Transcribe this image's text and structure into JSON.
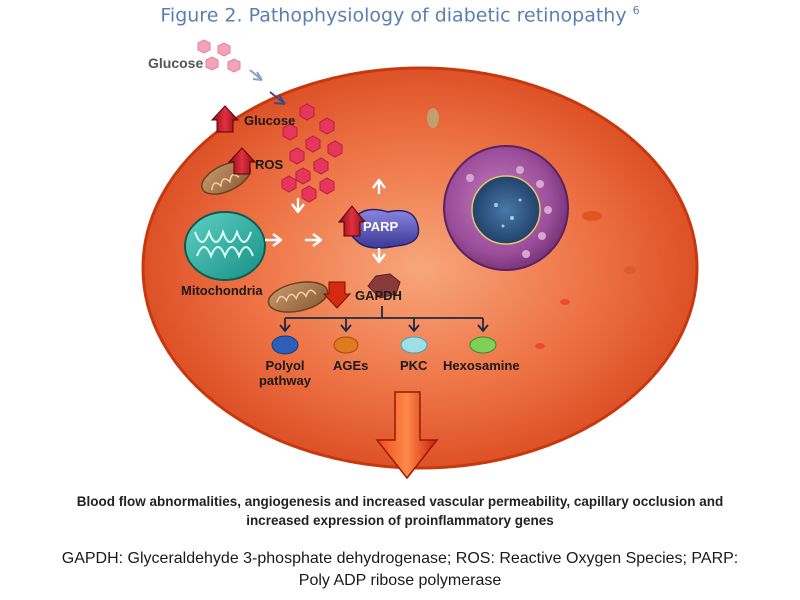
{
  "figure": {
    "title": "Figure 2. Pathophysiology of diabetic retinopathy",
    "ref": "6"
  },
  "labels": {
    "glucose_outside": "Glucose",
    "glucose_inside": "Glucose",
    "ros": "ROS",
    "parp": "PARP",
    "mitochondria": "Mitochondria",
    "gapdh": "GAPDH",
    "polyol": "Polyol pathway",
    "ages": "AGEs",
    "pkc": "PKC",
    "hexosamine": "Hexosamine"
  },
  "outcome": {
    "text": "Blood flow abnormalities, angiogenesis and increased vascular permeability, capillary occlusion and increased expression of proinflammatory genes"
  },
  "legend": {
    "text": "GAPDH: Glyceraldehyde 3-phosphate dehydrogenase; ROS: Reactive Oxygen Species; PARP: Poly ADP ribose polymerase"
  },
  "colors": {
    "title": "#5a7fb2",
    "cell": "#e8613a",
    "up_arrow": "#c8102e",
    "down_arrow": "#d42a10"
  },
  "icons": [
    "glucose-molecule-icon",
    "up-arrow-icon",
    "down-arrow-icon",
    "flow-arrow-icon",
    "mitochondrion-icon",
    "nucleus-icon"
  ]
}
